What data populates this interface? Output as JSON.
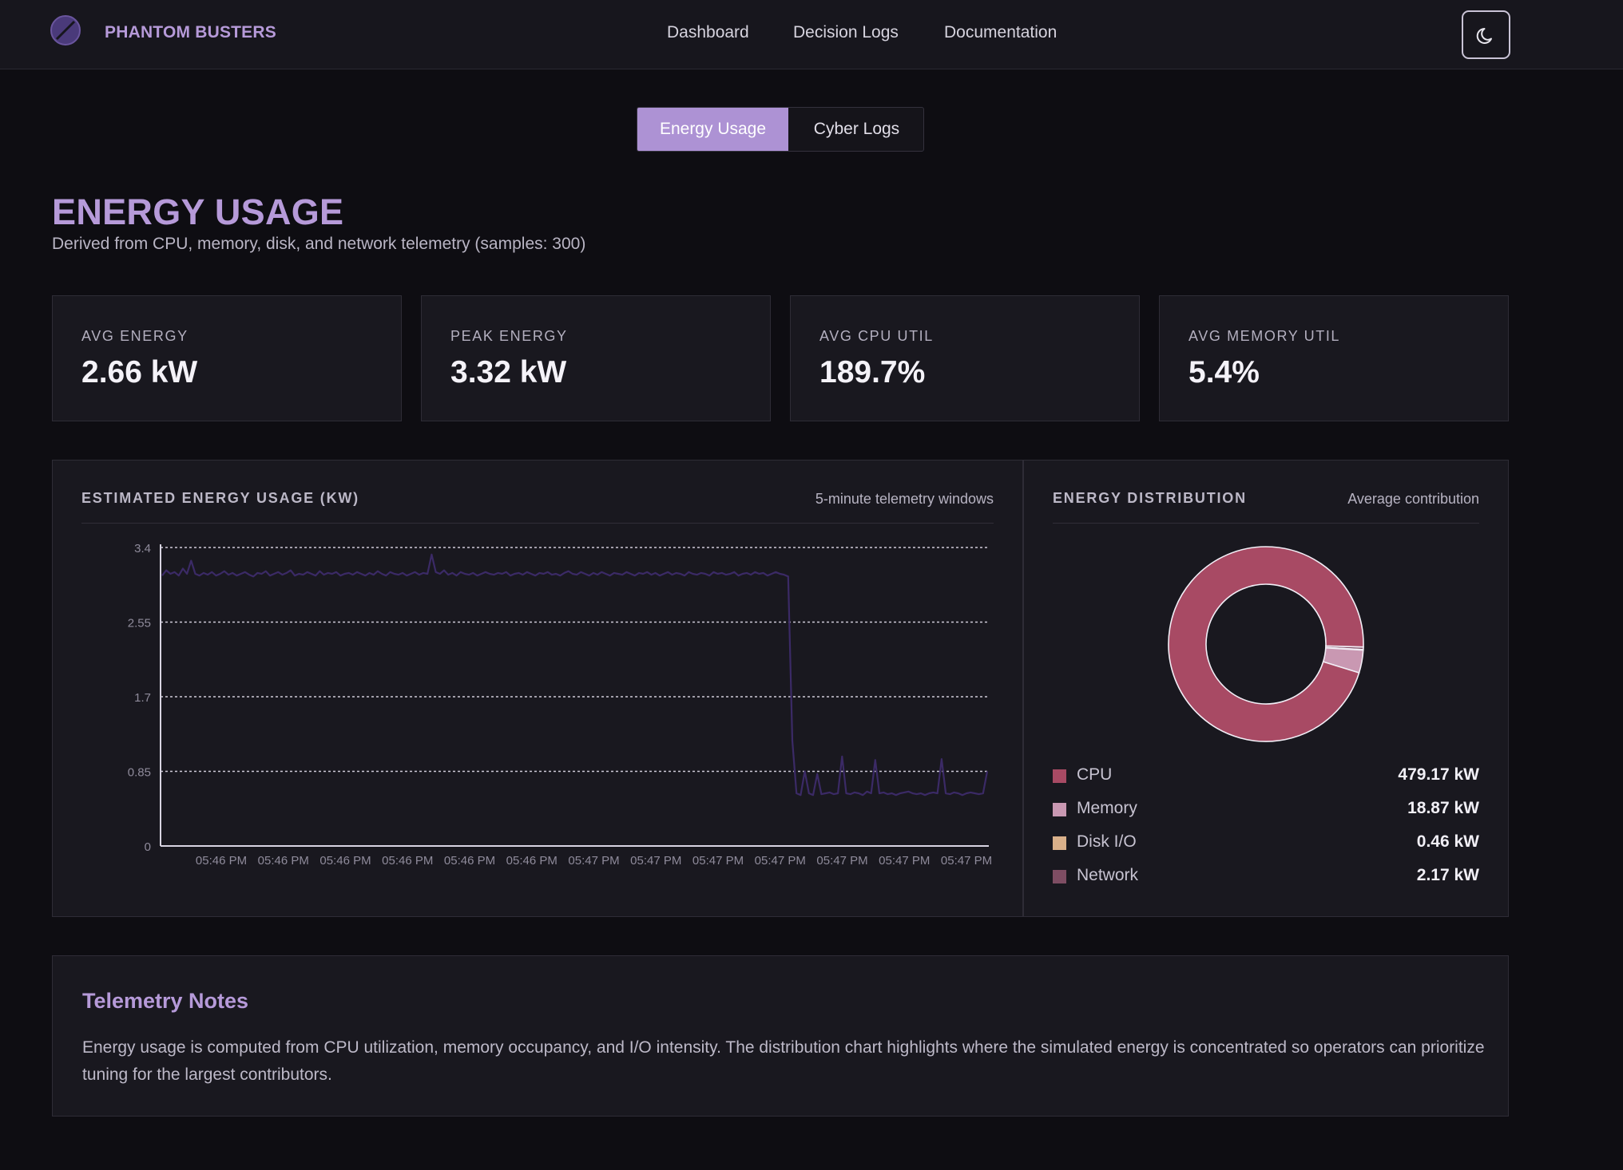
{
  "header": {
    "brand": "PHANTOM BUSTERS",
    "nav": [
      "Dashboard",
      "Decision Logs",
      "Documentation"
    ],
    "theme_icon": "moon-icon"
  },
  "tabs": [
    {
      "label": "Energy Usage",
      "active": true
    },
    {
      "label": "Cyber Logs",
      "active": false
    }
  ],
  "page": {
    "title": "ENERGY USAGE",
    "subtitle": "Derived from CPU, memory, disk, and network telemetry (samples: 300)"
  },
  "stats": [
    {
      "label": "AVG ENERGY",
      "value": "2.66 kW"
    },
    {
      "label": "PEAK ENERGY",
      "value": "3.32 kW"
    },
    {
      "label": "AVG CPU UTIL",
      "value": "189.7%"
    },
    {
      "label": "AVG MEMORY UTIL",
      "value": "5.4%"
    }
  ],
  "line_panel": {
    "title": "ESTIMATED ENERGY USAGE (KW)",
    "note": "5-minute telemetry windows"
  },
  "donut_panel": {
    "title": "ENERGY DISTRIBUTION",
    "note": "Average contribution"
  },
  "chart_data": [
    {
      "type": "line",
      "title": "ESTIMATED ENERGY USAGE (KW)",
      "ylim": [
        0,
        3.4
      ],
      "yticks": [
        "0",
        "0.85",
        "1.7",
        "2.55",
        "3.4"
      ],
      "ytick_values": [
        0,
        0.85,
        1.7,
        2.55,
        3.4
      ],
      "xticks": [
        "05:46 PM",
        "05:46 PM",
        "05:46 PM",
        "05:46 PM",
        "05:46 PM",
        "05:46 PM",
        "05:47 PM",
        "05:47 PM",
        "05:47 PM",
        "05:47 PM",
        "05:47 PM",
        "05:47 PM",
        "05:47 PM"
      ],
      "grid": true,
      "line_color": "#3b2a66",
      "series": [
        {
          "values": [
            3.08,
            3.14,
            3.1,
            3.12,
            3.08,
            3.16,
            3.1,
            3.25,
            3.1,
            3.08,
            3.11,
            3.09,
            3.12,
            3.08,
            3.1,
            3.13,
            3.09,
            3.11,
            3.08,
            3.1,
            3.12,
            3.09,
            3.07,
            3.11,
            3.1,
            3.13,
            3.08,
            3.1,
            3.12,
            3.09,
            3.11,
            3.14,
            3.08,
            3.1,
            3.09,
            3.12,
            3.1,
            3.08,
            3.13,
            3.09,
            3.11,
            3.1,
            3.12,
            3.08,
            3.1,
            3.11,
            3.09,
            3.12,
            3.1,
            3.08,
            3.11,
            3.09,
            3.13,
            3.1,
            3.08,
            3.12,
            3.1,
            3.09,
            3.11,
            3.08,
            3.1,
            3.12,
            3.09,
            3.11,
            3.1,
            3.32,
            3.12,
            3.1,
            3.14,
            3.09,
            3.11,
            3.08,
            3.12,
            3.1,
            3.09,
            3.11,
            3.08,
            3.1,
            3.12,
            3.1,
            3.09,
            3.11,
            3.1,
            3.12,
            3.08,
            3.1,
            3.11,
            3.09,
            3.12,
            3.1,
            3.08,
            3.11,
            3.1,
            3.12,
            3.09,
            3.1,
            3.08,
            3.11,
            3.13,
            3.1,
            3.09,
            3.12,
            3.1,
            3.08,
            3.11,
            3.09,
            3.12,
            3.1,
            3.08,
            3.11,
            3.1,
            3.09,
            3.12,
            3.1,
            3.08,
            3.11,
            3.1,
            3.12,
            3.09,
            3.11,
            3.08,
            3.1,
            3.12,
            3.09,
            3.11,
            3.1,
            3.08,
            3.12,
            3.1,
            3.09,
            3.11,
            3.1,
            3.08,
            3.12,
            3.1,
            3.11,
            3.09,
            3.1,
            3.12,
            3.08,
            3.1,
            3.11,
            3.09,
            3.12,
            3.1,
            3.11,
            3.08,
            3.1,
            3.12,
            3.1,
            3.09,
            3.07,
            1.2,
            0.6,
            0.58,
            0.85,
            0.6,
            0.58,
            0.82,
            0.59,
            0.6,
            0.61,
            0.59,
            0.6,
            1.02,
            0.6,
            0.59,
            0.61,
            0.6,
            0.58,
            0.62,
            0.6,
            0.98,
            0.6,
            0.61,
            0.59,
            0.6,
            0.58,
            0.6,
            0.61,
            0.62,
            0.6,
            0.59,
            0.6,
            0.58,
            0.6,
            0.61,
            0.6,
            0.99,
            0.6,
            0.59,
            0.61,
            0.6,
            0.58,
            0.6,
            0.61,
            0.6,
            0.59,
            0.6,
            0.85
          ]
        }
      ]
    },
    {
      "type": "pie",
      "title": "ENERGY DISTRIBUTION",
      "categories": [
        "CPU",
        "Memory",
        "Disk I/O",
        "Network"
      ],
      "values": [
        479.17,
        18.87,
        0.46,
        2.17
      ],
      "labels": [
        "479.17 kW",
        "18.87 kW",
        "0.46 kW",
        "2.17 kW"
      ],
      "colors": [
        "#a84a64",
        "#c998b2",
        "#d9b08a",
        "#7e4d63"
      ]
    }
  ],
  "notes": {
    "title": "Telemetry Notes",
    "body": "Energy usage is computed from CPU utilization, memory occupancy, and I/O intensity. The distribution chart highlights where the simulated energy is concentrated so operators can prioritize tuning for the largest contributors."
  }
}
